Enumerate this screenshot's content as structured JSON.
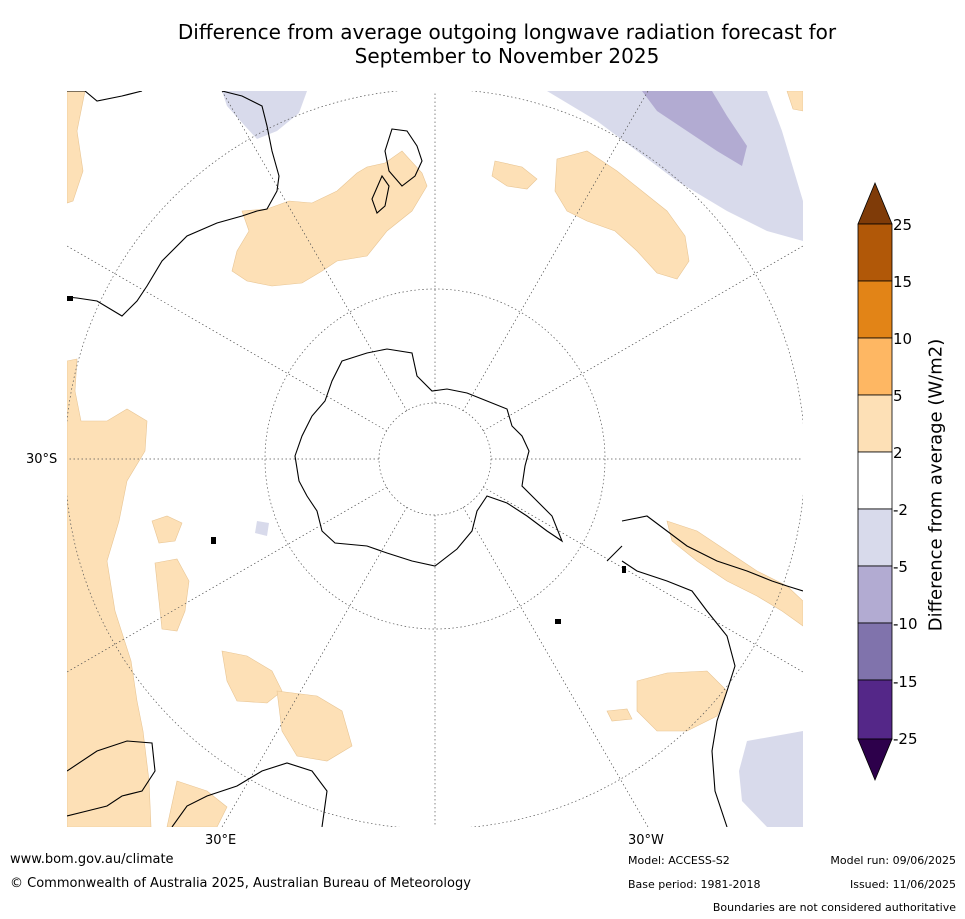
{
  "title": {
    "line1": "Difference from average outgoing longwave radiation forecast for",
    "line2": "September to November 2025"
  },
  "map": {
    "projection": "south-polar-stereographic",
    "lat_labels": [
      "30°S"
    ],
    "lon_labels": [
      "30°E",
      "30°W"
    ]
  },
  "colorbar": {
    "label": "Difference from average (W/m2)",
    "ticks": [
      "25",
      "15",
      "10",
      "5",
      "2",
      "-2",
      "-5",
      "-10",
      "-15",
      "-25"
    ],
    "bands": [
      {
        "from": "15",
        "to": "25",
        "color": "#b15808"
      },
      {
        "from": "10",
        "to": "15",
        "color": "#e28417"
      },
      {
        "from": "5",
        "to": "10",
        "color": "#feb763"
      },
      {
        "from": "2",
        "to": "5",
        "color": "#fde0b6"
      },
      {
        "from": "-2",
        "to": "2",
        "color": "#ffffff"
      },
      {
        "from": "-5",
        "to": "-2",
        "color": "#d8daeb"
      },
      {
        "from": "-10",
        "to": "-5",
        "color": "#b2abd2"
      },
      {
        "from": "-15",
        "to": "-10",
        "color": "#8073ac"
      },
      {
        "from": "-25",
        "to": "-15",
        "color": "#542788"
      }
    ],
    "over_color": "#7f3b08",
    "under_color": "#2d004b"
  },
  "footer": {
    "website": "www.bom.gov.au/climate",
    "copyright": "© Commonwealth of Australia 2025, Australian Bureau of Meteorology",
    "model": "Model: ACCESS-S2",
    "base_period": "Base period: 1981-2018",
    "model_run": "Model run: 09/06/2025",
    "issued": "Issued: 11/06/2025",
    "disclaimer": "Boundaries are not considered authoritative"
  }
}
